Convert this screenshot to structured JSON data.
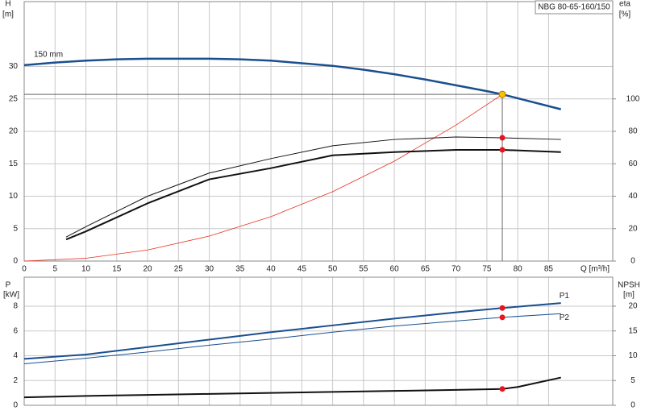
{
  "chart_data": [
    {
      "type": "line",
      "title": "NBG 80-65-160/150",
      "y_label": "H",
      "y_unit": "[m]",
      "y2_label": "eta",
      "y2_unit": "[%]",
      "x_label": "Q [m³/h]",
      "xlim": [
        0,
        95.4
      ],
      "xticks": [
        0,
        5,
        10,
        15,
        20,
        25,
        30,
        35,
        40,
        45,
        50,
        55,
        60,
        65,
        70,
        75,
        80,
        85
      ],
      "ylim": [
        0,
        40
      ],
      "yticks": [
        0,
        5,
        10,
        15,
        20,
        25,
        30
      ],
      "y2lim": [
        0,
        160
      ],
      "y2ticks": [
        0,
        20,
        40,
        60,
        80,
        100
      ],
      "grid": true,
      "operating_point": {
        "x": 77.5,
        "y": 25.7,
        "color": "#f5c400"
      },
      "marker_color": "#e8141e",
      "series": [
        {
          "name": "150 mm",
          "color": "#1a4f8f",
          "width": 2.5,
          "x": [
            0,
            5,
            10,
            15,
            20,
            25,
            30,
            35,
            40,
            45,
            50,
            55,
            60,
            65,
            70,
            75,
            77.5,
            80,
            87
          ],
          "values": [
            30.2,
            30.6,
            30.9,
            31.1,
            31.2,
            31.2,
            31.2,
            31.1,
            30.9,
            30.5,
            30.1,
            29.5,
            28.8,
            28.0,
            27.1,
            26.2,
            25.7,
            25.1,
            23.4
          ]
        },
        {
          "color": "#e8301e",
          "width": 0.8,
          "x": [
            0,
            10,
            20,
            30,
            40,
            50,
            60,
            70,
            77.5
          ],
          "values": [
            0,
            0.43,
            1.71,
            3.85,
            6.85,
            10.7,
            15.4,
            20.97,
            25.7
          ]
        },
        {
          "color": "#111111",
          "width": 1,
          "axis": "y2",
          "x": [
            6.8,
            10,
            20,
            30,
            40,
            50,
            60,
            70,
            77.5,
            87
          ],
          "values": [
            14.8,
            21.2,
            40,
            54.3,
            63.2,
            71.1,
            75,
            76.5,
            76,
            75
          ]
        },
        {
          "color": "#111111",
          "width": 2,
          "axis": "y2",
          "x": [
            6.8,
            10,
            20,
            30,
            40,
            50,
            60,
            70,
            77.5,
            87
          ],
          "values": [
            13.3,
            18.3,
            35.6,
            50.4,
            57.3,
            65.2,
            67.2,
            68.6,
            68.6,
            67.2
          ]
        }
      ]
    },
    {
      "type": "line",
      "y_label": "P",
      "y_unit": "[kW]",
      "y2_label": "NPSH",
      "y2_unit": "[m]",
      "xlim": [
        0,
        95.4
      ],
      "ylim": [
        0,
        10.34
      ],
      "yticks": [
        0,
        2,
        4,
        6,
        8
      ],
      "y2lim": [
        0,
        25.85
      ],
      "y2ticks": [
        0,
        5,
        10,
        15,
        20
      ],
      "grid": true,
      "marked_x": 77.5,
      "marker_color": "#e8141e",
      "series": [
        {
          "name": "P1",
          "color": "#1a4f8f",
          "width": 2,
          "x": [
            0,
            10,
            20,
            30,
            40,
            50,
            60,
            70,
            77.5,
            87
          ],
          "values": [
            3.75,
            4.1,
            4.7,
            5.3,
            5.9,
            6.45,
            7.0,
            7.5,
            7.85,
            8.25
          ]
        },
        {
          "name": "P2",
          "color": "#1a4f8f",
          "width": 1,
          "x": [
            0,
            10,
            20,
            30,
            40,
            50,
            60,
            70,
            77.5,
            87
          ],
          "values": [
            3.35,
            3.8,
            4.3,
            4.85,
            5.35,
            5.9,
            6.4,
            6.8,
            7.1,
            7.4
          ]
        },
        {
          "color": "#111111",
          "width": 2,
          "axis": "y2",
          "x": [
            0,
            10,
            20,
            30,
            40,
            50,
            60,
            70,
            77.5,
            80,
            87
          ],
          "values": [
            1.6,
            1.9,
            2.1,
            2.3,
            2.5,
            2.7,
            2.9,
            3.1,
            3.3,
            3.7,
            5.6
          ]
        }
      ]
    }
  ]
}
